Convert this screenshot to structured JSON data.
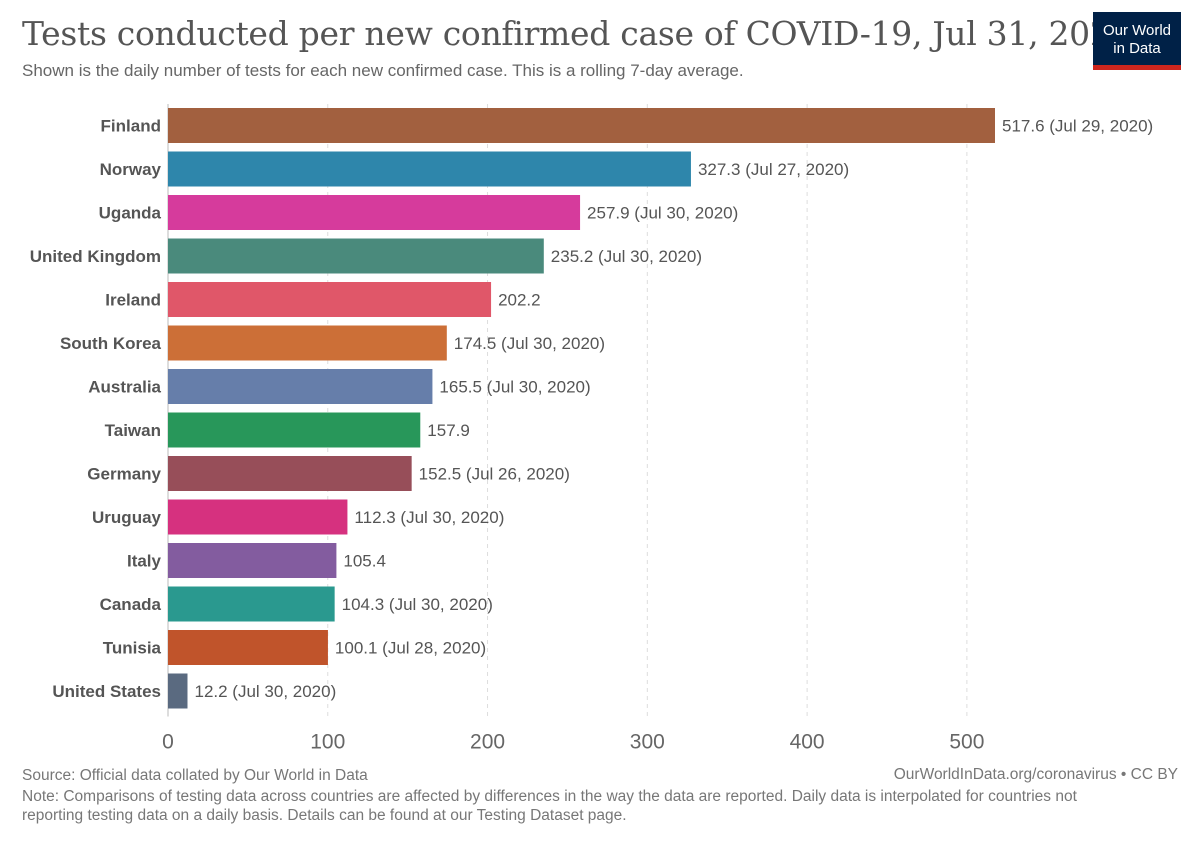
{
  "header": {
    "title": "Tests conducted per new confirmed case of COVID-19, Jul 31, 2020",
    "subtitle": "Shown is the daily number of tests for each new confirmed case. This is a rolling 7-day average.",
    "logo_line1": "Our World",
    "logo_line2": "in Data"
  },
  "footer": {
    "source": "Source: Official data collated by Our World in Data",
    "url": "OurWorldInData.org/coronavirus • CC BY",
    "note": "Note: Comparisons of testing data across countries are affected by differences in the way the data are reported. Daily data is interpolated for countries not reporting testing data on a daily basis. Details can be found at our Testing Dataset page."
  },
  "chart_data": {
    "type": "bar",
    "orientation": "horizontal",
    "xlim": [
      0,
      517.6
    ],
    "xticks": [
      0,
      100,
      200,
      300,
      400,
      500
    ],
    "grid": true,
    "bars": [
      {
        "country": "Finland",
        "value": 517.6,
        "label": "517.6 (Jul 29, 2020)",
        "color": "#a2603f"
      },
      {
        "country": "Norway",
        "value": 327.3,
        "label": "327.3 (Jul 27, 2020)",
        "color": "#2e86ab"
      },
      {
        "country": "Uganda",
        "value": 257.9,
        "label": "257.9 (Jul 30, 2020)",
        "color": "#d63b9c"
      },
      {
        "country": "United Kingdom",
        "value": 235.2,
        "label": "235.2 (Jul 30, 2020)",
        "color": "#4a8a7c"
      },
      {
        "country": "Ireland",
        "value": 202.2,
        "label": "202.2",
        "color": "#e05769"
      },
      {
        "country": "South Korea",
        "value": 174.5,
        "label": "174.5 (Jul 30, 2020)",
        "color": "#cc6f37"
      },
      {
        "country": "Australia",
        "value": 165.5,
        "label": "165.5 (Jul 30, 2020)",
        "color": "#667eaa"
      },
      {
        "country": "Taiwan",
        "value": 157.9,
        "label": "157.9",
        "color": "#28975a"
      },
      {
        "country": "Germany",
        "value": 152.5,
        "label": "152.5 (Jul 26, 2020)",
        "color": "#974e59"
      },
      {
        "country": "Uruguay",
        "value": 112.3,
        "label": "112.3 (Jul 30, 2020)",
        "color": "#d6317f"
      },
      {
        "country": "Italy",
        "value": 105.4,
        "label": "105.4",
        "color": "#835c9f"
      },
      {
        "country": "Canada",
        "value": 104.3,
        "label": "104.3 (Jul 30, 2020)",
        "color": "#2a998f"
      },
      {
        "country": "Tunisia",
        "value": 100.1,
        "label": "100.1 (Jul 28, 2020)",
        "color": "#c0542b"
      },
      {
        "country": "United States",
        "value": 12.2,
        "label": "12.2 (Jul 30, 2020)",
        "color": "#5a6a80"
      }
    ]
  }
}
